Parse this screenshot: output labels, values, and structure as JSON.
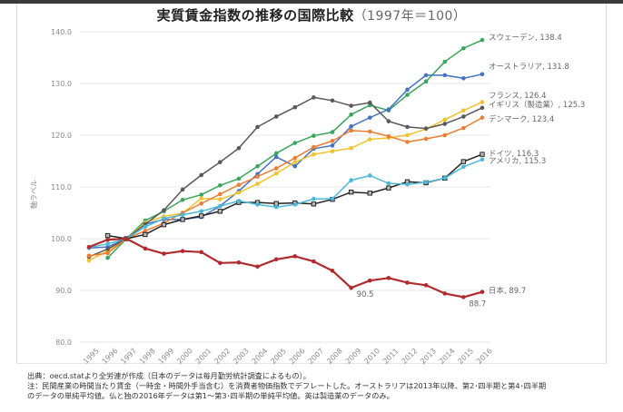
{
  "chart_data": {
    "type": "line",
    "title": "実質賃金指数の推移の国際比較",
    "subtitle": "（1997年＝100）",
    "ylabel": "軸ラベル",
    "xlabel": "",
    "ylim": [
      80,
      140
    ],
    "yticks": [
      "80.0",
      "90.0",
      "100.0",
      "110.0",
      "120.0",
      "130.0",
      "140.0"
    ],
    "ytick_values": [
      80,
      90,
      100,
      110,
      120,
      130,
      140
    ],
    "grid": true,
    "categories": [
      "1995",
      "1996",
      "1997",
      "1998",
      "1999",
      "2000",
      "2001",
      "2002",
      "2003",
      "2004",
      "2005",
      "2006",
      "2007",
      "2008",
      "2009",
      "2010",
      "2011",
      "2012",
      "2013",
      "2014",
      "2015",
      "2016"
    ],
    "series": [
      {
        "name": "スウェーデン",
        "label": "スウェーデン, 138.4",
        "color": "#3aa55c",
        "marker": "circle",
        "values": [
          null,
          96.3,
          100.0,
          103.5,
          105.3,
          107.5,
          108.5,
          110.3,
          111.6,
          114.0,
          116.5,
          118.5,
          119.9,
          120.6,
          124.0,
          125.8,
          124.8,
          127.8,
          130.4,
          134.2,
          136.8,
          138.4
        ]
      },
      {
        "name": "オーストラリア",
        "label": "オーストラリア, 131.8",
        "color": "#4472c4",
        "marker": "circle",
        "values": [
          98.2,
          98.4,
          100.0,
          102.8,
          103.7,
          103.7,
          104.2,
          106.3,
          109.2,
          112.5,
          115.8,
          114.0,
          117.4,
          118.0,
          121.7,
          123.4,
          125.0,
          128.8,
          131.6,
          131.6,
          131.0,
          131.8
        ]
      },
      {
        "name": "フランス",
        "label": "フランス, 126.4",
        "color": "#f2c12e",
        "marker": "circle",
        "values": [
          95.8,
          97.6,
          100.0,
          103.1,
          104.3,
          104.9,
          107.8,
          107.6,
          108.9,
          110.6,
          112.6,
          114.8,
          116.3,
          116.9,
          117.5,
          119.2,
          119.5,
          120.0,
          121.2,
          123.0,
          124.8,
          126.4
        ]
      },
      {
        "name": "イギリス（製造業）",
        "label": "イギリス（製造業）, 125.3",
        "color": "#595959",
        "marker": "circle",
        "values": [
          96.5,
          98.0,
          100.0,
          102.8,
          105.5,
          109.5,
          112.3,
          114.8,
          117.5,
          121.6,
          123.6,
          125.4,
          127.3,
          126.7,
          125.7,
          126.3,
          122.7,
          121.6,
          121.3,
          122.2,
          123.6,
          125.3
        ]
      },
      {
        "name": "デンマーク",
        "label": "デンマーク, 123.4",
        "color": "#ed7d31",
        "marker": "circle",
        "values": [
          96.7,
          97.2,
          100.0,
          101.5,
          103.0,
          105.0,
          106.8,
          108.6,
          110.4,
          112.0,
          113.6,
          115.6,
          117.7,
          118.9,
          120.9,
          120.7,
          119.8,
          118.7,
          119.3,
          120.0,
          121.4,
          123.4
        ]
      },
      {
        "name": "ドイツ",
        "label": "ドイツ, 116.3",
        "color": "#222222",
        "marker": "square",
        "values": [
          null,
          100.6,
          100.0,
          100.8,
          102.7,
          103.7,
          104.4,
          105.3,
          107.0,
          107.0,
          106.8,
          106.9,
          106.7,
          107.6,
          109.0,
          108.8,
          109.8,
          111.0,
          110.8,
          111.7,
          114.9,
          116.3
        ]
      },
      {
        "name": "アメリカ",
        "label": "アメリカ, 115.3",
        "color": "#4bb8d8",
        "marker": "circle",
        "values": [
          98.3,
          99.0,
          100.0,
          102.3,
          103.9,
          104.6,
          105.3,
          106.3,
          107.3,
          106.6,
          106.1,
          106.6,
          107.7,
          107.7,
          111.3,
          112.2,
          110.7,
          110.5,
          110.9,
          111.7,
          113.9,
          115.3
        ]
      },
      {
        "name": "日本",
        "label": "日本, 89.7",
        "color": "#b22a2e",
        "marker": "circle",
        "values": [
          98.4,
          99.8,
          100.0,
          98.1,
          97.1,
          97.6,
          97.4,
          95.3,
          95.4,
          94.6,
          96.0,
          96.6,
          95.6,
          93.8,
          90.5,
          91.9,
          92.4,
          91.5,
          91.0,
          89.4,
          88.7,
          89.7
        ]
      }
    ],
    "annotations": [
      {
        "series": "日本",
        "x": "2009",
        "text": "90.5"
      },
      {
        "series": "日本",
        "x": "2015",
        "text": "88.7"
      }
    ]
  },
  "notes": {
    "source": "出典：oecd.statより全労連が作成（日本のデータは毎月勤労統計調査によるもの）。",
    "note_line1": "注：民間産業の時間当たり賃金（一時金・時間外手当含む）を消費者物価指数でデフレートした。オーストラリアは2013年以降、第2･四半期と第4･四半期",
    "note_line2": "のデータの単純平均値。仏と独の2016年データは第1～第3･四半期の単純平均値。英は製造業のデータのみ。"
  }
}
